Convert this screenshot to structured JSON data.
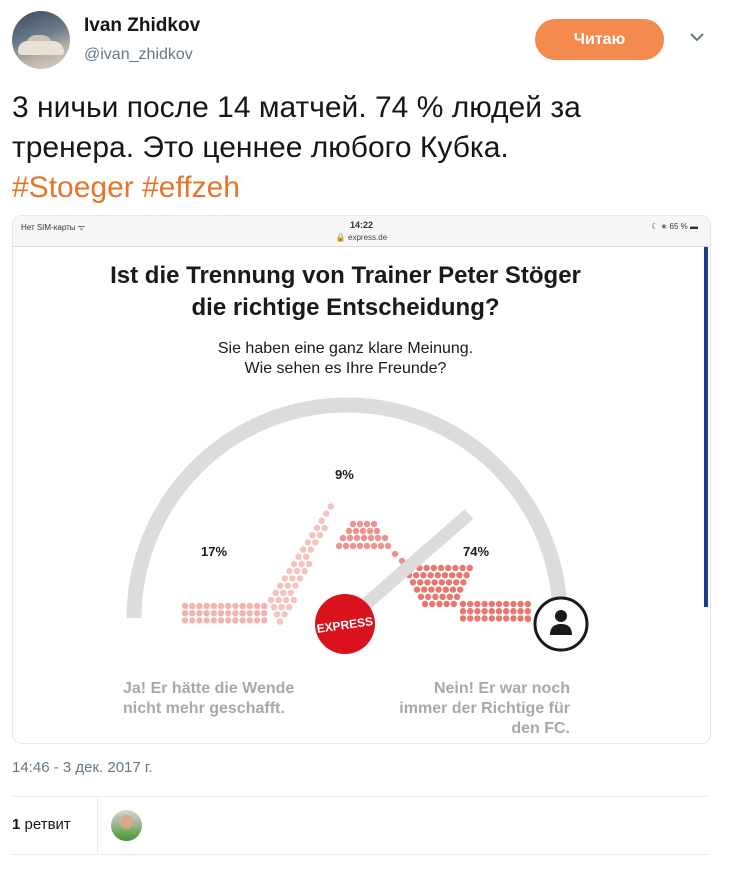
{
  "tweet": {
    "author_name": "Ivan Zhidkov",
    "author_handle": "@ivan_zhidkov",
    "follow_label": "Читаю",
    "text_line1": "3 ничьи после 14 матчей. 74 % людей за",
    "text_line2": "тренера. Это ценнее любого Кубка.",
    "hashtag1": "#Stoeger",
    "hashtag2": "#effzeh",
    "timestamp": "14:46 - 3 дек. 2017 г.",
    "retweet_count": "1",
    "retweet_label": "ретвит",
    "accent_color": "#f48a4e",
    "hashtag_color": "#e8742a"
  },
  "screenshot": {
    "status": {
      "carrier": "Нет SIM-карты ᯤ",
      "time": "14:22",
      "url": "🔒 express.de",
      "battery": "☾ ∗ 65 % ▬"
    },
    "title_line1": "Ist die Trennung von Trainer Peter Stöger",
    "title_line2": "die richtige Entscheidung?",
    "subtitle_line1": "Sie haben eine ganz klare Meinung.",
    "subtitle_line2": "Wie sehen es Ihre Freunde?",
    "logo_text": "EXPRESS",
    "poll": {
      "yes_percent": 17,
      "neutral_percent": 9,
      "no_percent": 74,
      "yes_label": "17%",
      "neutral_label": "9%",
      "no_label": "74%",
      "yes_answer_line1": "Ja! Er hätte die Wende",
      "yes_answer_line2": "nicht mehr geschafft.",
      "no_answer_line1": "Nein! Er war noch",
      "no_answer_line2": "immer der Richtige für",
      "no_answer_line3": "den FC.",
      "dot_color": "#e9776f",
      "logo_color": "#d9121b",
      "gauge_color": "#dcdcdc"
    }
  },
  "icons": {
    "caret": "chevron-down-icon",
    "lock": "lock-icon",
    "user": "user-icon"
  }
}
